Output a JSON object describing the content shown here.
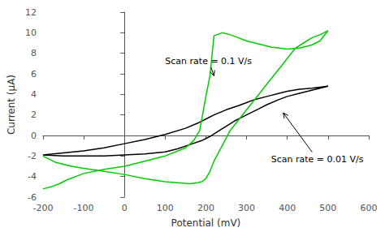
{
  "chart_data": {
    "type": "line",
    "xlabel": "Potential (mV)",
    "ylabel": "Current (μA)",
    "xlim": [
      -200,
      600
    ],
    "ylim": [
      -6,
      12
    ],
    "xticks": [
      -200,
      -100,
      0,
      100,
      200,
      300,
      400,
      500,
      600
    ],
    "yticks": [
      -6,
      -4,
      -2,
      0,
      2,
      4,
      6,
      8,
      10,
      12
    ],
    "grid": false,
    "series": [
      {
        "color": "#000000",
        "x": [
          -200,
          -150,
          -100,
          -50,
          0,
          50,
          100,
          150,
          180,
          200,
          220,
          250,
          280,
          300,
          320,
          350,
          380,
          400,
          430,
          460,
          480,
          500,
          500,
          480,
          460,
          430,
          400,
          380,
          350,
          330,
          310,
          290,
          270,
          250,
          230,
          210,
          190,
          160,
          130,
          100,
          50,
          0,
          -50,
          -100,
          -150,
          -200
        ],
        "values": [
          -1.9,
          -1.7,
          -1.5,
          -1.2,
          -0.8,
          -0.4,
          0.1,
          0.7,
          1.2,
          1.6,
          2.0,
          2.5,
          2.9,
          3.2,
          3.5,
          3.8,
          4.1,
          4.3,
          4.5,
          4.6,
          4.7,
          4.8,
          4.8,
          4.6,
          4.4,
          4.1,
          3.8,
          3.5,
          3.0,
          2.6,
          2.2,
          1.8,
          1.4,
          0.9,
          0.4,
          -0.1,
          -0.5,
          -0.9,
          -1.3,
          -1.6,
          -1.8,
          -1.9,
          -2.0,
          -2.0,
          -2.0,
          -1.9
        ]
      },
      {
        "color": "#00cc00",
        "x": [
          -200,
          -180,
          -160,
          -150,
          -140,
          -120,
          -100,
          -50,
          0,
          50,
          100,
          150,
          170,
          185,
          200,
          210,
          220,
          240,
          260,
          280,
          300,
          320,
          340,
          360,
          380,
          400,
          430,
          460,
          480,
          500,
          500,
          480,
          460,
          440,
          420,
          400,
          380,
          360,
          340,
          320,
          300,
          280,
          260,
          240,
          220,
          210,
          200,
          190,
          180,
          160,
          130,
          100,
          50,
          0,
          -50,
          -100,
          -130,
          -150,
          -170,
          -200
        ],
        "values": [
          -5.2,
          -5.0,
          -4.7,
          -4.5,
          -4.3,
          -4.0,
          -3.7,
          -3.3,
          -3.0,
          -2.5,
          -2.0,
          -1.2,
          -0.5,
          0.5,
          3.8,
          5.8,
          9.7,
          10.0,
          9.8,
          9.5,
          9.2,
          9.0,
          8.8,
          8.6,
          8.5,
          8.4,
          8.5,
          8.8,
          9.2,
          10.2,
          10.2,
          9.8,
          9.5,
          9.0,
          8.5,
          7.5,
          6.5,
          5.5,
          4.5,
          3.5,
          2.5,
          1.5,
          0.5,
          -1.0,
          -2.5,
          -3.5,
          -4.2,
          -4.5,
          -4.6,
          -4.7,
          -4.6,
          -4.5,
          -4.2,
          -3.8,
          -3.5,
          -3.2,
          -3.0,
          -2.8,
          -2.6,
          -2.0
        ]
      }
    ],
    "annotations": [
      {
        "text": "Scan rate = 0.01 V/s",
        "xy": [
          390,
          2.2
        ],
        "xytext": [
          360,
          -2.8
        ]
      },
      {
        "text": "Scan rate = 0.1 V/s",
        "xy": [
          220,
          5.8
        ],
        "xytext": [
          100,
          6.8
        ]
      }
    ]
  }
}
